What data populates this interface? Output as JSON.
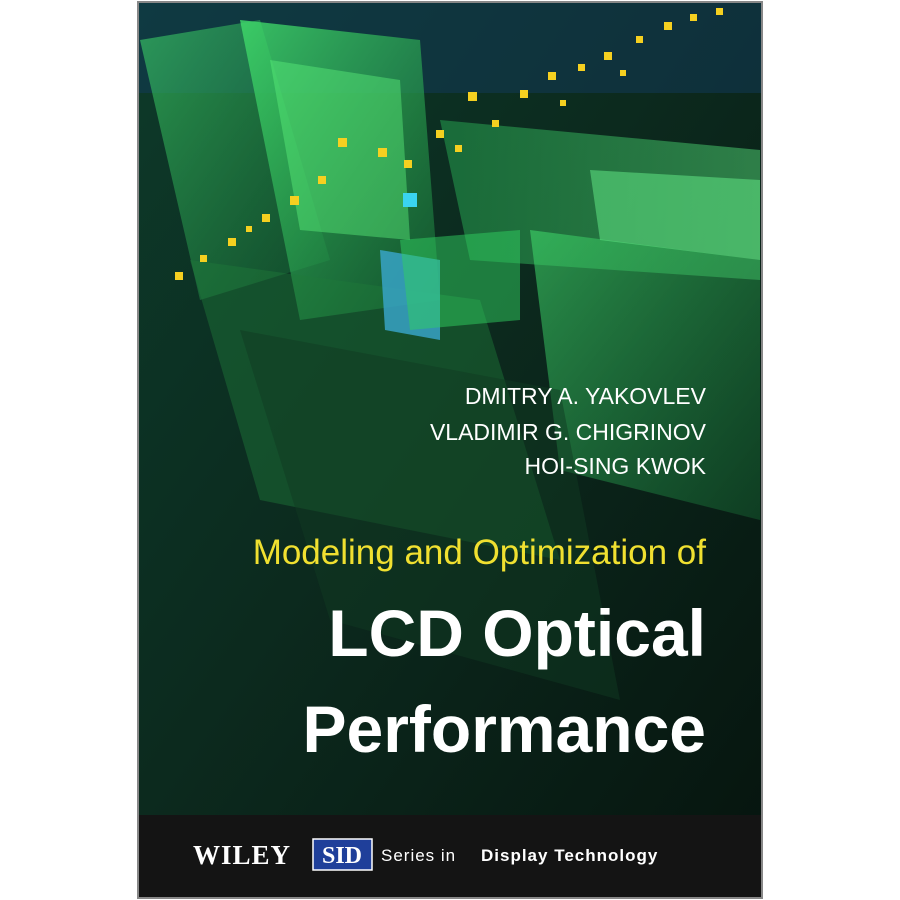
{
  "authors": [
    "DMITRY A. YAKOVLEV",
    "VLADIMIR G. CHIGRINOV",
    "HOI-SING KWOK"
  ],
  "title": {
    "subtitle": "Modeling and Optimization of",
    "lines": [
      "LCD Optical",
      "Performance"
    ]
  },
  "footer": {
    "publisher": "WILEY",
    "society": "SID",
    "series_prefix": "Series in",
    "series_name": "Display Technology"
  }
}
